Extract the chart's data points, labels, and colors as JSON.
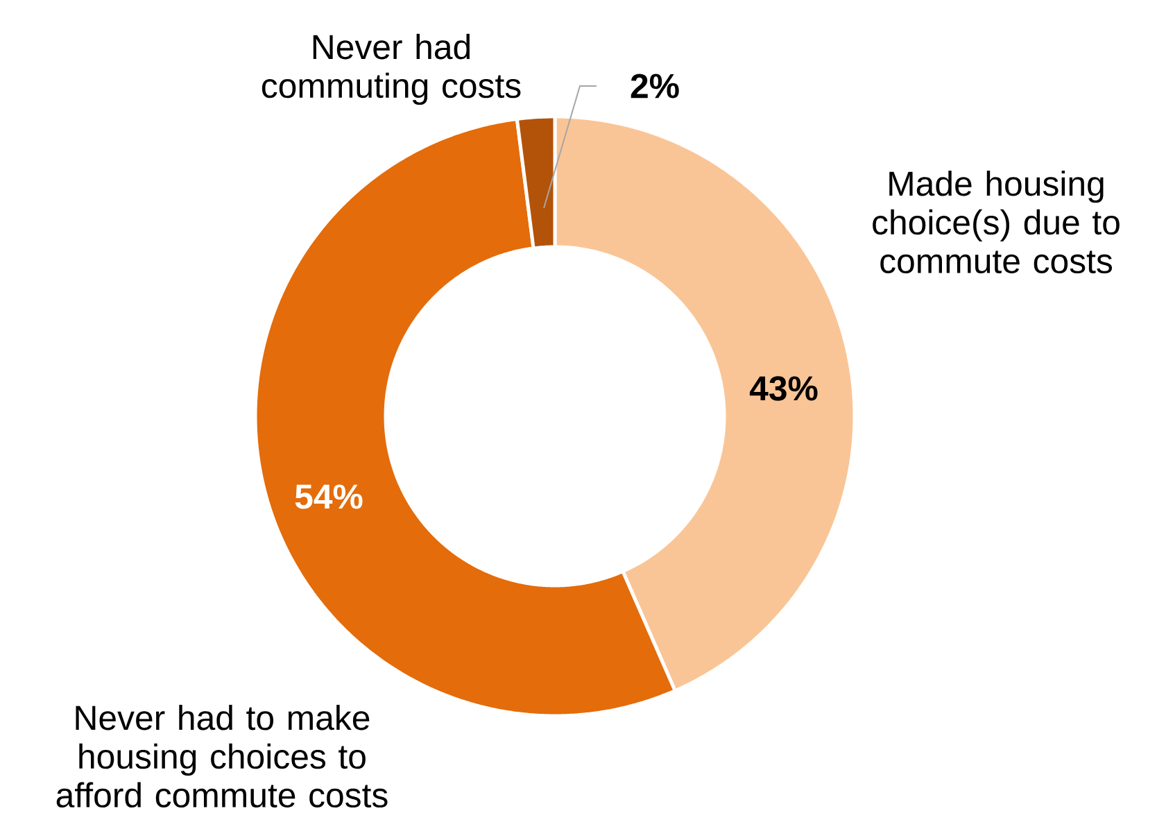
{
  "chart_data": {
    "type": "donut",
    "categories": [
      "Made housing choice(s) due to commute costs",
      "Never had to make housing choices to afford commute costs",
      "Never had commuting costs"
    ],
    "values": [
      43,
      54,
      2
    ],
    "colors": [
      "#fac596",
      "#e46c0a",
      "#b35309"
    ],
    "value_labels": [
      "43%",
      "54%",
      "2%"
    ]
  }
}
